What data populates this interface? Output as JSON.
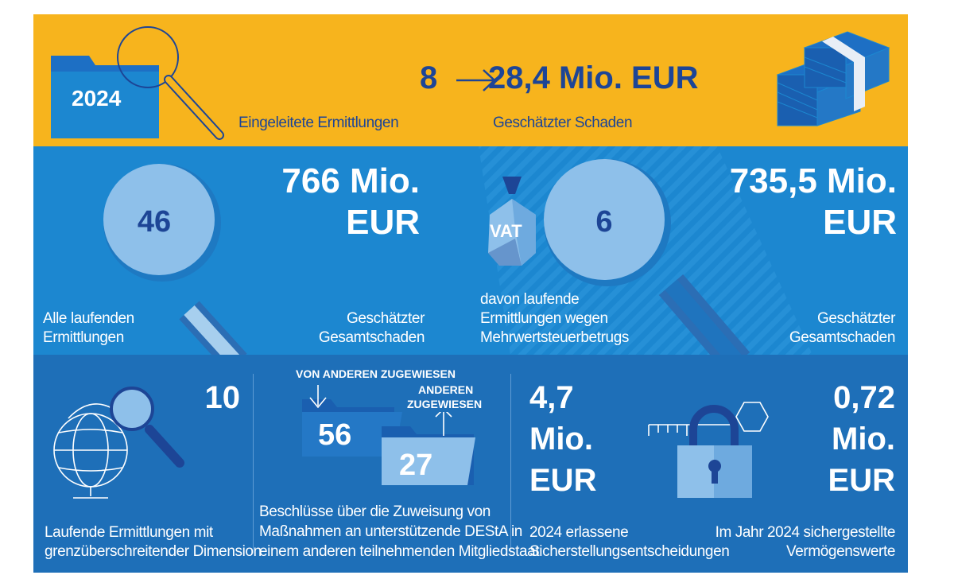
{
  "top": {
    "year": "2024",
    "investigations_count": "8",
    "investigations_label": "Eingeleitete Ermittlungen",
    "damage_value": "28,4 Mio. EUR",
    "damage_label": "Geschätzter Schaden"
  },
  "middle": {
    "ongoing_count": "46",
    "ongoing_label_1": "Alle laufenden",
    "ongoing_label_2": "Ermittlungen",
    "total_damage_1": "766 Mio.",
    "total_damage_2": "EUR",
    "total_damage_label_1": "Geschätzter",
    "total_damage_label_2": "Gesamtschaden",
    "vat_tag": "VAT",
    "vat_count": "6",
    "vat_label_1": "davon laufende",
    "vat_label_2": "Ermittlungen wegen",
    "vat_label_3": "Mehrwertsteuerbetrugs",
    "vat_damage_1": "735,5 Mio.",
    "vat_damage_2": "EUR",
    "vat_damage_label_1": "Geschätzter",
    "vat_damage_label_2": "Gesamtschaden"
  },
  "bottom": {
    "crossborder_count": "10",
    "crossborder_label_1": "Laufende Ermittlungen mit",
    "crossborder_label_2": "grenzüberschreitender Dimension",
    "assigned_from_label": "VON ANDEREN ZUGEWIESEN",
    "assigned_from_count": "56",
    "assigned_to_label_1": "ANDEREN",
    "assigned_to_label_2": "ZUGEWIESEN",
    "assigned_to_count": "27",
    "assign_label_1": "Beschlüsse über die Zuweisung von",
    "assign_label_2": "Maßnahmen an unterstützende DEStA in",
    "assign_label_3": "einem anderen teilnehmenden Mitgliedstaat",
    "freeze_value_1": "4,7",
    "freeze_value_2": "Mio.",
    "freeze_value_3": "EUR",
    "freeze_label_1": "2024 erlassene",
    "freeze_label_2": "Sicherstellungsentscheidungen",
    "seized_value_1": "0,72",
    "seized_value_2": "Mio.",
    "seized_value_3": "EUR",
    "seized_label_1": "Im Jahr 2024 sichergestellte",
    "seized_label_2": "Vermögenswerte"
  },
  "colors": {
    "yellow": "#F7B41D",
    "mid_blue": "#1C87D0",
    "dark_blue": "#1E6FB8",
    "navy": "#1D4596",
    "light_blue": "#8EC0EA"
  },
  "icons": [
    "folder-icon",
    "magnifier-icon",
    "arrow-right-icon",
    "money-stack-icon",
    "magnifier-lens-icon",
    "vat-bag-icon",
    "globe-icon",
    "folder-in-icon",
    "folder-out-icon",
    "padlock-icon",
    "key-icon"
  ]
}
